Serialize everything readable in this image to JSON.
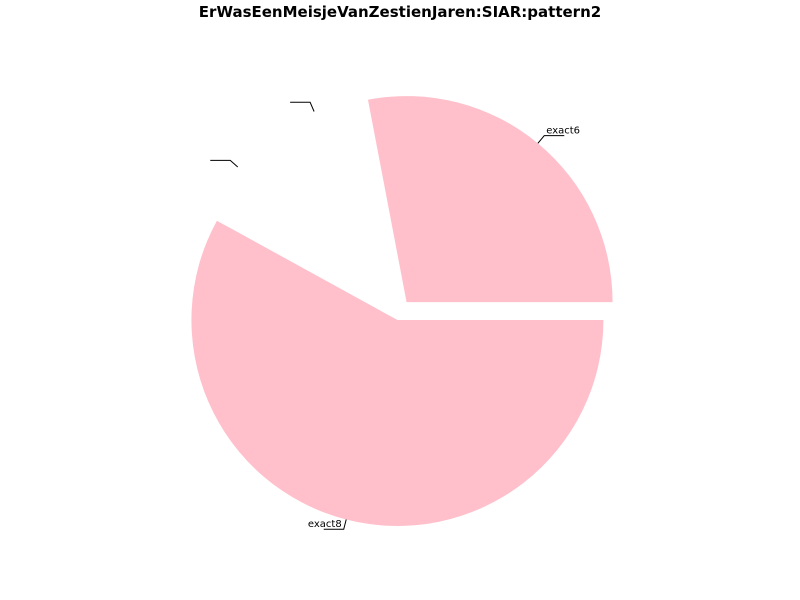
{
  "chart_data": {
    "type": "pie",
    "title": "ErWasEenMeisjeVanZestienJaren:SIAR:pattern2",
    "slices": [
      {
        "label": "exact6",
        "value": 0.28,
        "color": "#FFC0CB"
      },
      {
        "label": "",
        "value": 0.07,
        "color": "#FFFFFF"
      },
      {
        "label": "",
        "value": 0.07,
        "color": "#FFFFFF"
      },
      {
        "label": "exact8",
        "value": 0.58,
        "color": "#FFC0CB"
      }
    ],
    "exploded": true,
    "legend": "none"
  }
}
